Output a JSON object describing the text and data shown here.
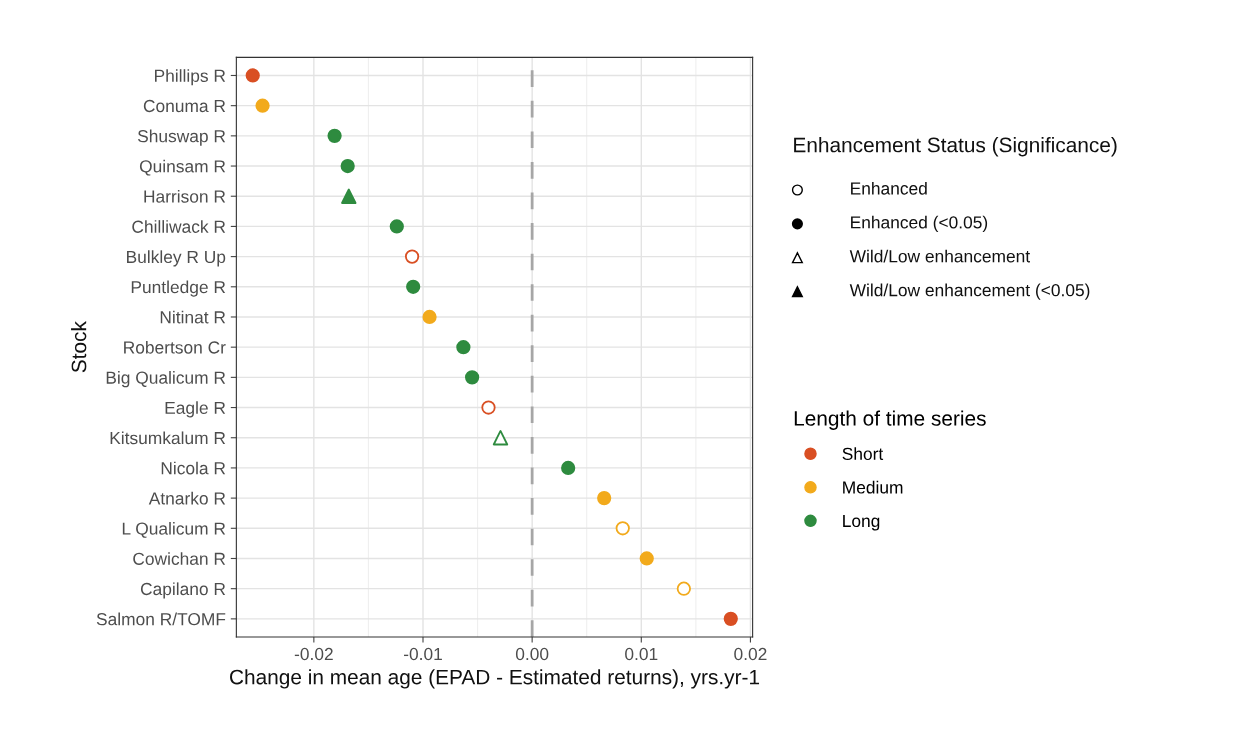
{
  "chart_data": {
    "type": "scatter",
    "orientation": "horizontal",
    "xlabel": "Change in mean age (EPAD - Estimated returns), yrs.yr-1",
    "ylabel": "Stock",
    "categories": [
      "Phillips R",
      "Conuma R",
      "Shuswap R",
      "Quinsam R",
      "Harrison R",
      "Chilliwack R",
      "Bulkley R Up",
      "Puntledge R",
      "Nitinat R",
      "Robertson Cr",
      "Big Qualicum R",
      "Eagle R",
      "Kitsumkalum R",
      "Nicola R",
      "Atnarko R",
      "L Qualicum R",
      "Cowichan R",
      "Capilano R",
      "Salmon R/TOMF"
    ],
    "legend_title": "Length of time series",
    "annotations": [
      "Enhancement Status (Significance)",
      "Enhanced",
      "Enhanced (<0.05)",
      "Wild/Low enhancement",
      "Wild/Low enhancement (<0.05)"
    ],
    "series": [
      {
        "name": "Short",
        "color": "#d94f23",
        "marker": "circle",
        "values": [
          -0.0256,
          null,
          null,
          null,
          null,
          null,
          null,
          null,
          null,
          null,
          null,
          null,
          null,
          null,
          null,
          null,
          null,
          null,
          0.0182
        ],
        "colors": [
          "#d94f23",
          null,
          null,
          null,
          null,
          null,
          null,
          null,
          null,
          null,
          null,
          null,
          null,
          null,
          null,
          null,
          null,
          null,
          "#d94f23"
        ]
      },
      {
        "name": "Medium",
        "color": "#f2aa1c",
        "marker": "circle",
        "values": [
          null,
          -0.0247,
          null,
          null,
          null,
          null,
          null,
          null,
          -0.0094,
          null,
          null,
          null,
          null,
          null,
          0.0066,
          null,
          0.0105,
          null,
          null
        ],
        "colors": [
          null,
          "#f2aa1c",
          null,
          null,
          null,
          null,
          null,
          null,
          "#f2aa1c",
          null,
          null,
          null,
          null,
          null,
          "#f2aa1c",
          null,
          "#f2aa1c",
          null,
          null
        ]
      },
      {
        "name": "Long",
        "color": "#2e8b3f",
        "marker": "circle",
        "values": [
          null,
          null,
          -0.0181,
          -0.0169,
          null,
          -0.0124,
          null,
          -0.0109,
          null,
          -0.0063,
          -0.0055,
          null,
          null,
          0.0033,
          null,
          null,
          null,
          null,
          null
        ],
        "colors": [
          null,
          null,
          "#2e8b3f",
          "#2e8b3f",
          null,
          "#2e8b3f",
          null,
          "#2e8b3f",
          null,
          "#2e8b3f",
          "#2e8b3f",
          null,
          null,
          "#2e8b3f",
          null,
          null,
          null,
          null,
          null
        ]
      },
      {
        "color": "#d94f23",
        "marker": "circle",
        "values": [
          null,
          null,
          null,
          null,
          null,
          null,
          -0.011,
          null,
          null,
          null,
          null,
          -0.004,
          null,
          null,
          null,
          null,
          null,
          null,
          null
        ],
        "colors": [
          null,
          null,
          null,
          null,
          null,
          null,
          "#ffffff",
          null,
          null,
          null,
          null,
          "#ffffff",
          null,
          null,
          null,
          null,
          null,
          null,
          null
        ]
      },
      {
        "color": "#f2aa1c",
        "marker": "circle",
        "values": [
          null,
          null,
          null,
          null,
          null,
          null,
          null,
          null,
          null,
          null,
          null,
          null,
          null,
          null,
          null,
          0.0083,
          null,
          0.0139,
          null
        ],
        "colors": [
          null,
          null,
          null,
          null,
          null,
          null,
          null,
          null,
          null,
          null,
          null,
          null,
          null,
          null,
          null,
          "#ffffff",
          null,
          "#ffffff",
          null
        ]
      },
      {
        "color": "#2e8b3f",
        "marker": "triangle",
        "values": [
          null,
          null,
          null,
          null,
          -0.0168,
          null,
          null,
          null,
          null,
          null,
          null,
          null,
          null,
          null,
          null,
          null,
          null,
          null,
          null
        ],
        "colors": [
          null,
          null,
          null,
          null,
          "#2e8b3f",
          null,
          null,
          null,
          null,
          null,
          null,
          null,
          null,
          null,
          null,
          null,
          null,
          null,
          null
        ]
      },
      {
        "color": "#2e8b3f",
        "marker": "triangle",
        "values": [
          null,
          null,
          null,
          null,
          null,
          null,
          null,
          null,
          null,
          null,
          null,
          null,
          -0.0029,
          null,
          null,
          null,
          null,
          null,
          null
        ],
        "colors": [
          null,
          null,
          null,
          null,
          null,
          null,
          null,
          null,
          null,
          null,
          null,
          null,
          "#ffffff",
          null,
          null,
          null,
          null,
          null,
          null
        ]
      }
    ],
    "xlim": [
      -0.0271,
      0.0202
    ],
    "xticks": [
      {
        "value": -0.02,
        "label": "-0.02"
      },
      {
        "value": -0.01,
        "label": "-0.01"
      },
      {
        "value": 0,
        "label": "0.00"
      },
      {
        "value": 0.01,
        "label": "0.01"
      },
      {
        "value": 0.02,
        "label": "0.02"
      }
    ],
    "ref_lines": [
      {
        "axis": "x",
        "value": 0,
        "color": "#a6a6a6",
        "line_style": "dashed"
      }
    ],
    "grid": true,
    "legend": "right"
  }
}
